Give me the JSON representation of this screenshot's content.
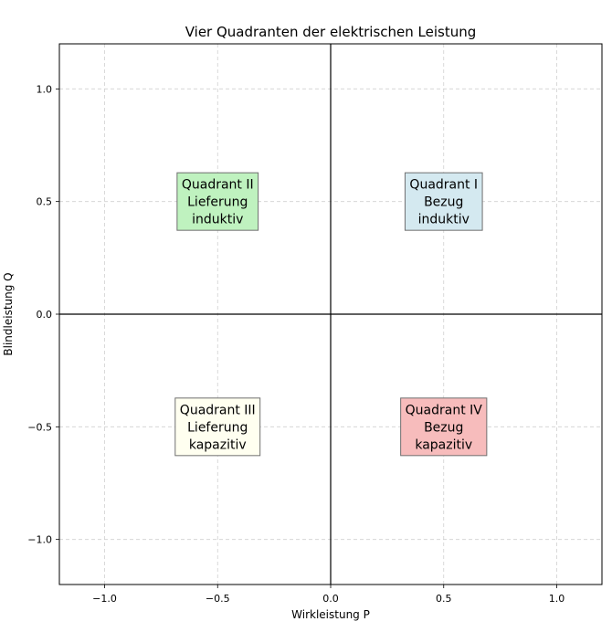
{
  "chart_data": {
    "type": "scatter",
    "title": "Vier Quadranten der elektrischen Leistung",
    "xlabel": "Wirkleistung P",
    "ylabel": "Blindleistung Q",
    "xlim": [
      -1.2,
      1.2
    ],
    "ylim": [
      -1.2,
      1.2
    ],
    "grid": true,
    "x_ticks": [
      {
        "value": -1.0,
        "label": "−1.0"
      },
      {
        "value": -0.5,
        "label": "−0.5"
      },
      {
        "value": 0.0,
        "label": "0.0"
      },
      {
        "value": 0.5,
        "label": "0.5"
      },
      {
        "value": 1.0,
        "label": "1.0"
      }
    ],
    "y_ticks": [
      {
        "value": -1.0,
        "label": "−1.0"
      },
      {
        "value": -0.5,
        "label": "−0.5"
      },
      {
        "value": 0.0,
        "label": "0.0"
      },
      {
        "value": 0.5,
        "label": "0.5"
      },
      {
        "value": 1.0,
        "label": "1.0"
      }
    ],
    "reference_lines": [
      {
        "axis": "x",
        "value": 0.0
      },
      {
        "axis": "y",
        "value": 0.0
      }
    ],
    "annotations": [
      {
        "x": 0.5,
        "y": 0.5,
        "lines": [
          "Quadrant I",
          "Bezug",
          "induktiv"
        ],
        "color": "#d4e9f0"
      },
      {
        "x": -0.5,
        "y": 0.5,
        "lines": [
          "Quadrant II",
          "Lieferung",
          "induktiv"
        ],
        "color": "#bff2bf"
      },
      {
        "x": -0.5,
        "y": -0.5,
        "lines": [
          "Quadrant III",
          "Lieferung",
          "kapazitiv"
        ],
        "color": "#fffff0"
      },
      {
        "x": 0.5,
        "y": -0.5,
        "lines": [
          "Quadrant IV",
          "Bezug",
          "kapazitiv"
        ],
        "color": "#f7bcbc"
      }
    ]
  }
}
